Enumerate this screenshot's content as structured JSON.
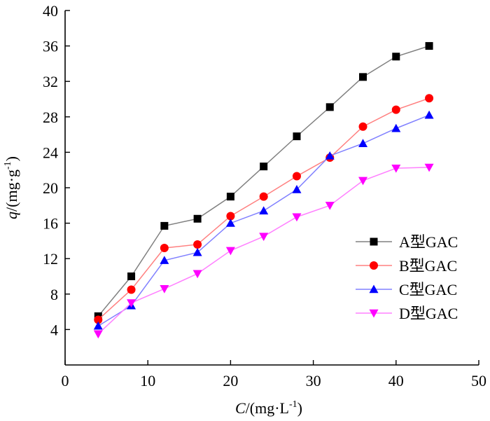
{
  "chart_data": {
    "type": "line",
    "title": "",
    "xlabel": {
      "var": "C",
      "unit": "/(mg·L",
      "sup": "-1",
      "close": ")"
    },
    "ylabel": {
      "var": "q",
      "unit": "/(mg·g",
      "sup": "-1",
      "close": ")"
    },
    "xlim": [
      0,
      50
    ],
    "ylim": [
      0,
      40
    ],
    "xticks": [
      0,
      10,
      20,
      30,
      40,
      50
    ],
    "yticks": [
      4,
      8,
      12,
      16,
      20,
      24,
      28,
      32,
      36,
      40
    ],
    "grid": false,
    "legend_position": "bottom-right",
    "x": [
      4,
      8,
      12,
      16,
      20,
      24,
      28,
      32,
      36,
      40,
      44
    ],
    "series": [
      {
        "name": "A型GAC",
        "marker": "square",
        "marker_color": "#000000",
        "line_color": "#808080",
        "values": [
          5.5,
          10.0,
          15.7,
          16.5,
          19.0,
          22.4,
          25.8,
          29.1,
          32.5,
          34.8,
          36.0
        ]
      },
      {
        "name": "B型GAC",
        "marker": "circle",
        "marker_color": "#ff0000",
        "line_color": "#ff8080",
        "values": [
          5.1,
          8.5,
          13.2,
          13.6,
          16.8,
          19.0,
          21.3,
          23.4,
          26.9,
          28.8,
          30.1
        ]
      },
      {
        "name": "C型GAC",
        "marker": "triangle-up",
        "marker_color": "#0000ff",
        "line_color": "#8080ff",
        "values": [
          4.4,
          6.7,
          11.8,
          12.7,
          16.0,
          17.4,
          19.8,
          23.6,
          25.0,
          26.7,
          28.2
        ]
      },
      {
        "name": "D型GAC",
        "marker": "triangle-down",
        "marker_color": "#ff00ff",
        "line_color": "#ff80ff",
        "values": [
          3.5,
          7.0,
          8.6,
          10.3,
          12.9,
          14.5,
          16.7,
          18.0,
          20.8,
          22.2,
          22.3
        ]
      }
    ]
  }
}
